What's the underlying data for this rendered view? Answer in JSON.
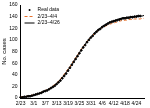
{
  "chart_data": {
    "type": "line",
    "y_label": "No. cases",
    "categories": [
      "2/23",
      null,
      null,
      null,
      null,
      null,
      null,
      "3/1",
      null,
      null,
      null,
      null,
      null,
      "3/7",
      null,
      null,
      null,
      null,
      null,
      "3/13",
      null,
      null,
      null,
      null,
      null,
      "3/19",
      null,
      null,
      null,
      null,
      null,
      "3/25",
      null,
      null,
      null,
      null,
      null,
      "3/31",
      null,
      null,
      null,
      null,
      null,
      "4/6",
      null,
      null,
      null,
      null,
      null,
      "4/12",
      null,
      null,
      null,
      null,
      null,
      "4/18",
      null,
      null,
      null,
      null,
      null,
      "4/24",
      null,
      null,
      null,
      null
    ],
    "series": [
      {
        "name": "Real data",
        "color": "#000000",
        "marker": "circle",
        "line_style": "none",
        "values": [
          1,
          1,
          2,
          2,
          3,
          3,
          4,
          5,
          6,
          7,
          8,
          9,
          11,
          12,
          13,
          15,
          17,
          19,
          21,
          24,
          27,
          30,
          34,
          38,
          42,
          47,
          52,
          57,
          62,
          67,
          72,
          77,
          82,
          87,
          91,
          96,
          100,
          104,
          107,
          111,
          114,
          117,
          119,
          122,
          124,
          126,
          128,
          130,
          131,
          132,
          133,
          134,
          135,
          136,
          137,
          137,
          138,
          138,
          139,
          139,
          140,
          140,
          141,
          141,
          null,
          null
        ]
      },
      {
        "name": "2/23–4/4",
        "color": "#e8702a",
        "marker": "none",
        "line_style": "dashed",
        "values": [
          2,
          2,
          2,
          3,
          3,
          4,
          5,
          5,
          6,
          7,
          8,
          10,
          11,
          13,
          14,
          16,
          18,
          21,
          23,
          26,
          29,
          33,
          37,
          41,
          45,
          50,
          54,
          59,
          64,
          69,
          74,
          79,
          84,
          88,
          93,
          97,
          101,
          104,
          108,
          111,
          114,
          116,
          119,
          121,
          123,
          124,
          126,
          127,
          128,
          129,
          130,
          131,
          132,
          133,
          133,
          134,
          134,
          135,
          135,
          135,
          136,
          136,
          136,
          136,
          137,
          137
        ]
      },
      {
        "name": "2/23–4/26",
        "color": "#000000",
        "marker": "none",
        "line_style": "solid",
        "values": [
          2,
          2,
          2,
          3,
          3,
          4,
          4,
          5,
          6,
          7,
          8,
          9,
          10,
          12,
          13,
          15,
          17,
          20,
          22,
          25,
          28,
          32,
          35,
          39,
          44,
          48,
          53,
          58,
          63,
          68,
          73,
          78,
          83,
          88,
          92,
          97,
          101,
          105,
          108,
          112,
          115,
          118,
          120,
          123,
          125,
          127,
          129,
          130,
          132,
          133,
          134,
          135,
          136,
          137,
          138,
          138,
          139,
          139,
          140,
          140,
          140,
          141,
          141,
          141,
          141,
          142
        ]
      }
    ],
    "ylim": [
      0,
      160
    ],
    "yticks": [
      0,
      20,
      40,
      60,
      80,
      100,
      120,
      140,
      160
    ],
    "grid": false,
    "legend": "upper left"
  }
}
